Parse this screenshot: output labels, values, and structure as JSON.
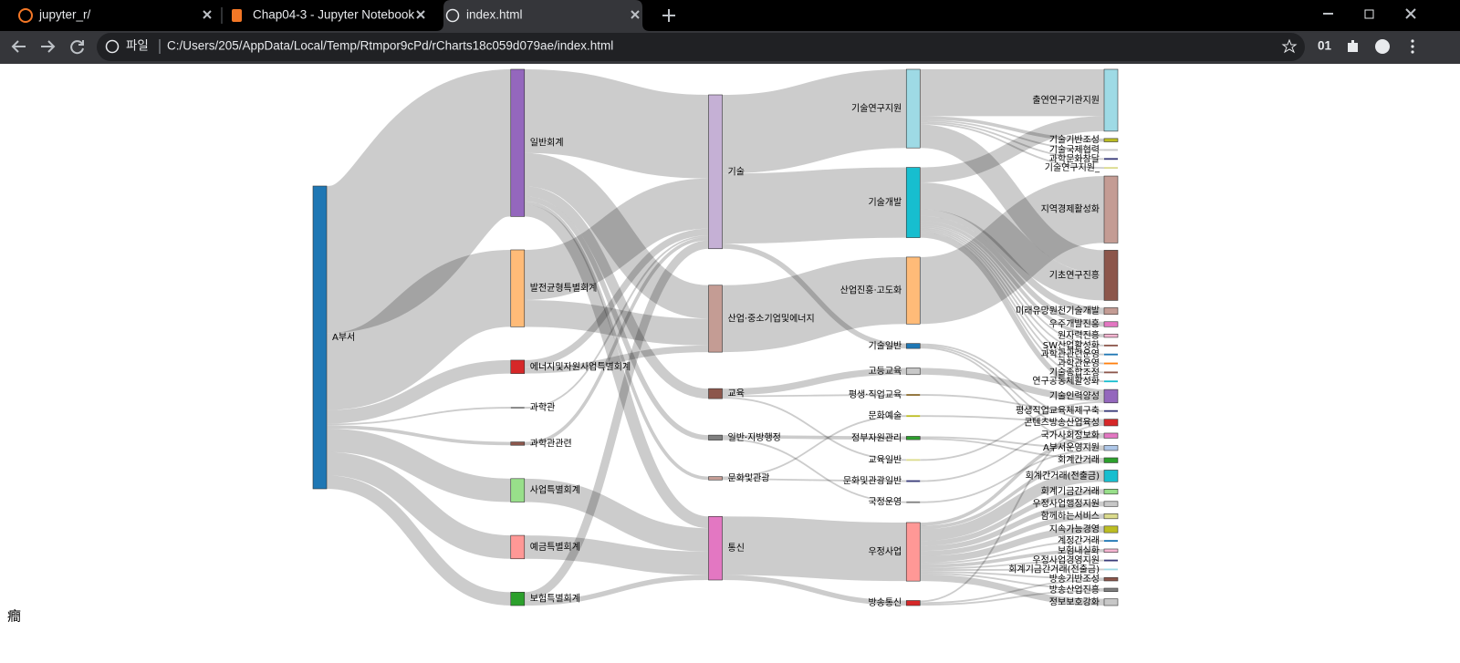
{
  "browser": {
    "tabs": [
      "jupyter_r/",
      "Chap04-3 - Jupyter Notebook",
      "index.html"
    ],
    "address_prefix": "파일",
    "url": "C:/Users/205/AppData/Local/Temp/Rtmpor9cPd/rCharts18c059d079ae/index.html",
    "profile": "01"
  },
  "chart_data": {
    "type": "sankey",
    "nodes": [
      {
        "label": "A부서",
        "color": "#1f77b4"
      },
      {
        "label": "일반회계",
        "color": "#9467bd"
      },
      {
        "label": "발전균형특별회계",
        "color": "#ffbb78"
      },
      {
        "label": "에너지및자원사업특별회계",
        "color": "#d62728"
      },
      {
        "label": "과학관",
        "color": "#7f7f7f"
      },
      {
        "label": "과학관관련",
        "color": "#8c564b"
      },
      {
        "label": "사업특별회계",
        "color": "#98df8a"
      },
      {
        "label": "예금특별회계",
        "color": "#ff9896"
      },
      {
        "label": "보험특별회계",
        "color": "#2ca02c"
      },
      {
        "label": "기술",
        "color": "#c5b0d5"
      },
      {
        "label": "산업·중소기업및에너지",
        "color": "#c49c94"
      },
      {
        "label": "교육",
        "color": "#8c564b"
      },
      {
        "label": "일반·지방행정",
        "color": "#7f7f7f"
      },
      {
        "label": "문화및관광",
        "color": "#c49c94"
      },
      {
        "label": "통신",
        "color": "#e377c2"
      },
      {
        "label": "기술연구지원",
        "color": "#9edae5"
      },
      {
        "label": "기술개발",
        "color": "#17becf"
      },
      {
        "label": "산업진흥·고도화",
        "color": "#ffbb78"
      },
      {
        "label": "기술일반",
        "color": "#1f77b4"
      },
      {
        "label": "고등교육",
        "color": "#c7c7c7"
      },
      {
        "label": "평생·직업교육",
        "color": "#8c6d31"
      },
      {
        "label": "문화예술",
        "color": "#bcbd22"
      },
      {
        "label": "정부자원관리",
        "color": "#2ca02c"
      },
      {
        "label": "교육일반",
        "color": "#dbdb8d"
      },
      {
        "label": "문화및관광일반",
        "color": "#393b79"
      },
      {
        "label": "국정운영",
        "color": "#7f7f7f"
      },
      {
        "label": "우정사업",
        "color": "#ff9896"
      },
      {
        "label": "방송통신",
        "color": "#d62728"
      },
      {
        "label": "출연연구기관지원",
        "color": "#9edae5"
      },
      {
        "label": "기술기반조성",
        "color": "#bcbd22"
      },
      {
        "label": "기술국제협력",
        "color": "#c7c7c7"
      },
      {
        "label": "과학문화창달",
        "color": "#393b79"
      },
      {
        "label": "기술연구지원_",
        "color": "#dbdb8d"
      },
      {
        "label": "지역경제활성화",
        "color": "#c49c94"
      },
      {
        "label": "기초연구진흥",
        "color": "#8c564b"
      },
      {
        "label": "미래유망원천기술개발",
        "color": "#c49c94"
      },
      {
        "label": "우주개발진흥",
        "color": "#e377c2"
      },
      {
        "label": "원자력진흥",
        "color": "#f7b6d2"
      },
      {
        "label": "SW산업활성화",
        "color": "#8c564b"
      },
      {
        "label": "과학관관련운영",
        "color": "#1f77b4"
      },
      {
        "label": "과학관운영",
        "color": "#ff7f0e"
      },
      {
        "label": "기술종합조정",
        "color": "#8c564b"
      },
      {
        "label": "연구공동체활성화",
        "color": "#17becf"
      },
      {
        "label": "기술인력양성",
        "color": "#9467bd"
      },
      {
        "label": "평생직업교육체제구축",
        "color": "#393b79"
      },
      {
        "label": "콘텐츠방송산업육성",
        "color": "#d62728"
      },
      {
        "label": "국가사회정보화",
        "color": "#e377c2"
      },
      {
        "label": "A부서운영지원",
        "color": "#aec7e8"
      },
      {
        "label": "회계간거래",
        "color": "#2ca02c"
      },
      {
        "label": "회계간거래(전출금)",
        "color": "#17becf"
      },
      {
        "label": "회계기금간거래",
        "color": "#98df8a"
      },
      {
        "label": "우정사업행정지원",
        "color": "#c7c7c7"
      },
      {
        "label": "함께하는서비스",
        "color": "#dbdb8d"
      },
      {
        "label": "지속가능경영",
        "color": "#bcbd22"
      },
      {
        "label": "계정간거래",
        "color": "#1f77b4"
      },
      {
        "label": "보험내실화",
        "color": "#f7b6d2"
      },
      {
        "label": "우정사업경영지원",
        "color": "#393b79"
      },
      {
        "label": "회계기금간거래(전출금)",
        "color": "#9edae5"
      },
      {
        "label": "방송기반조성",
        "color": "#8c564b"
      },
      {
        "label": "방송산업진흥",
        "color": "#7f7f7f"
      },
      {
        "label": "정보보호강화",
        "color": "#c7c7c7"
      }
    ],
    "links": [
      {
        "source": "A부서",
        "target": "일반회계",
        "value": 88
      },
      {
        "source": "A부서",
        "target": "발전균형특별회계",
        "value": 46
      },
      {
        "source": "A부서",
        "target": "에너지및자원사업특별회계",
        "value": 8
      },
      {
        "source": "A부서",
        "target": "과학관",
        "value": 1
      },
      {
        "source": "A부서",
        "target": "과학관관련",
        "value": 2
      },
      {
        "source": "A부서",
        "target": "사업특별회계",
        "value": 14
      },
      {
        "source": "A부서",
        "target": "예금특별회계",
        "value": 14
      },
      {
        "source": "A부서",
        "target": "보험특별회계",
        "value": 8
      },
      {
        "source": "일반회계",
        "target": "기술",
        "value": 50
      },
      {
        "source": "일반회계",
        "target": "산업·중소기업및에너지",
        "value": 20
      },
      {
        "source": "일반회계",
        "target": "교육",
        "value": 6
      },
      {
        "source": "일반회계",
        "target": "일반·지방행정",
        "value": 3
      },
      {
        "source": "일반회계",
        "target": "문화및관광",
        "value": 2
      },
      {
        "source": "일반회계",
        "target": "통신",
        "value": 7
      },
      {
        "source": "발전균형특별회계",
        "target": "기술",
        "value": 30
      },
      {
        "source": "발전균형특별회계",
        "target": "산업·중소기업및에너지",
        "value": 16
      },
      {
        "source": "에너지및자원사업특별회계",
        "target": "기술",
        "value": 4
      },
      {
        "source": "에너지및자원사업특별회계",
        "target": "산업·중소기업및에너지",
        "value": 4
      },
      {
        "source": "과학관",
        "target": "기술",
        "value": 1
      },
      {
        "source": "과학관관련",
        "target": "기술",
        "value": 2
      },
      {
        "source": "사업특별회계",
        "target": "통신",
        "value": 14
      },
      {
        "source": "예금특별회계",
        "target": "통신",
        "value": 14
      },
      {
        "source": "보험특별회계",
        "target": "통신",
        "value": 3
      },
      {
        "source": "보험특별회계",
        "target": "기술",
        "value": 5
      },
      {
        "source": "기술",
        "target": "기술연구지원",
        "value": 47
      },
      {
        "source": "기술",
        "target": "기술개발",
        "value": 42
      },
      {
        "source": "기술",
        "target": "기술일반",
        "value": 3
      },
      {
        "source": "산업·중소기업및에너지",
        "target": "산업진흥·고도화",
        "value": 40
      },
      {
        "source": "교육",
        "target": "고등교육",
        "value": 4
      },
      {
        "source": "교육",
        "target": "평생·직업교육",
        "value": 1
      },
      {
        "source": "교육",
        "target": "교육일반",
        "value": 1
      },
      {
        "source": "일반·지방행정",
        "target": "정부자원관리",
        "value": 2
      },
      {
        "source": "일반·지방행정",
        "target": "국정운영",
        "value": 1
      },
      {
        "source": "문화및관광",
        "target": "문화예술",
        "value": 1
      },
      {
        "source": "문화및관광",
        "target": "문화및관광일반",
        "value": 1
      },
      {
        "source": "통신",
        "target": "우정사업",
        "value": 35
      },
      {
        "source": "통신",
        "target": "방송통신",
        "value": 3
      },
      {
        "source": "기술연구지원",
        "target": "출연연구기관지원",
        "value": 28
      },
      {
        "source": "기술연구지원",
        "target": "기술기반조성",
        "value": 2
      },
      {
        "source": "기술연구지원",
        "target": "기술국제협력",
        "value": 1
      },
      {
        "source": "기술연구지원",
        "target": "과학문화창달",
        "value": 1
      },
      {
        "source": "기술연구지원",
        "target": "기술연구지원_",
        "value": 1
      },
      {
        "source": "기술연구지원",
        "target": "기초연구진흥",
        "value": 14
      },
      {
        "source": "기술개발",
        "target": "출연연구기관지원",
        "value": 9
      },
      {
        "source": "기술개발",
        "target": "미래유망원천기술개발",
        "value": 4
      },
      {
        "source": "기술개발",
        "target": "우주개발진흥",
        "value": 3
      },
      {
        "source": "기술개발",
        "target": "원자력진흥",
        "value": 2
      },
      {
        "source": "기술개발",
        "target": "SW산업활성화",
        "value": 1
      },
      {
        "source": "기술개발",
        "target": "기초연구진흥",
        "value": 16
      },
      {
        "source": "기술개발",
        "target": "과학관관련운영",
        "value": 1
      },
      {
        "source": "기술개발",
        "target": "과학관운영",
        "value": 1
      },
      {
        "source": "기술개발",
        "target": "기술종합조정",
        "value": 1
      },
      {
        "source": "기술개발",
        "target": "연구공동체활성화",
        "value": 1
      },
      {
        "source": "기술개발",
        "target": "기술인력양성",
        "value": 3
      },
      {
        "source": "산업진흥·고도화",
        "target": "지역경제활성화",
        "value": 40
      },
      {
        "source": "기술일반",
        "target": "국가사회정보화",
        "value": 1
      },
      {
        "source": "기술일반",
        "target": "콘텐츠방송산업육성",
        "value": 1
      },
      {
        "source": "기술일반",
        "target": "A부서운영지원",
        "value": 1
      },
      {
        "source": "고등교육",
        "target": "기술인력양성",
        "value": 4
      },
      {
        "source": "평생·직업교육",
        "target": "평생직업교육체제구축",
        "value": 1
      },
      {
        "source": "문화예술",
        "target": "콘텐츠방송산업육성",
        "value": 1
      },
      {
        "source": "문화및관광일반",
        "target": "콘텐츠방송산업육성",
        "value": 1
      },
      {
        "source": "정부자원관리",
        "target": "A부서운영지원",
        "value": 1
      },
      {
        "source": "정부자원관리",
        "target": "회계간거래",
        "value": 1
      },
      {
        "source": "교육일반",
        "target": "기술인력양성",
        "value": 1
      },
      {
        "source": "국정운영",
        "target": "A부서운영지원",
        "value": 1
      },
      {
        "source": "우정사업",
        "target": "회계간거래(전출금)",
        "value": 7
      },
      {
        "source": "우정사업",
        "target": "회계기금간거래",
        "value": 3
      },
      {
        "source": "우정사업",
        "target": "우정사업행정지원",
        "value": 3
      },
      {
        "source": "우정사업",
        "target": "함께하는서비스",
        "value": 3
      },
      {
        "source": "우정사업",
        "target": "지속가능경영",
        "value": 4
      },
      {
        "source": "우정사업",
        "target": "계정간거래",
        "value": 1
      },
      {
        "source": "우정사업",
        "target": "보험내실화",
        "value": 2
      },
      {
        "source": "우정사업",
        "target": "우정사업경영지원",
        "value": 1
      },
      {
        "source": "우정사업",
        "target": "회계기금간거래(전출금)",
        "value": 1
      },
      {
        "source": "우정사업",
        "target": "방송기반조성",
        "value": 1
      },
      {
        "source": "우정사업",
        "target": "방송산업진흥",
        "value": 1
      },
      {
        "source": "우정사업",
        "target": "정보보호강화",
        "value": 4
      },
      {
        "source": "우정사업",
        "target": "국가사회정보화",
        "value": 2
      },
      {
        "source": "우정사업",
        "target": "회계간거래",
        "value": 2
      },
      {
        "source": "방송통신",
        "target": "방송기반조성",
        "value": 1
      },
      {
        "source": "방송통신",
        "target": "방송산업진흥",
        "value": 1
      },
      {
        "source": "방송통신",
        "target": "콘텐츠방송산업육성",
        "value": 1
      }
    ]
  },
  "footer_text": "癎"
}
